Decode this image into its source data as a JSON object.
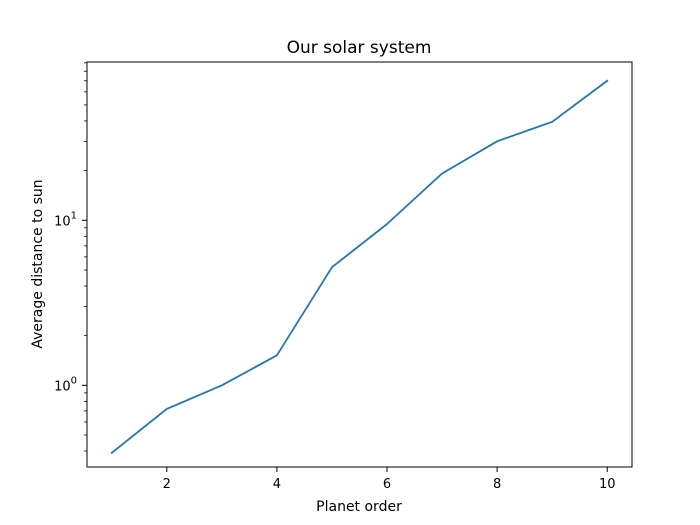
{
  "chart_data": {
    "type": "line",
    "title": "Our solar system",
    "xlabel": "Planet order",
    "ylabel": "Average distance to sun",
    "x_scale": "linear",
    "y_scale": "log",
    "xlim": [
      0.55,
      10.45
    ],
    "ylim": [
      0.32,
      91
    ],
    "x_ticks": [
      2,
      4,
      6,
      8,
      10
    ],
    "x_tick_labels": [
      "2",
      "4",
      "6",
      "8",
      "10"
    ],
    "y_major_ticks": [
      1,
      10
    ],
    "y_tick_labels": [
      {
        "base": "10",
        "exp": "0"
      },
      {
        "base": "10",
        "exp": "1"
      }
    ],
    "grid": false,
    "legend": "none",
    "line_color": "#1f77b4",
    "series": [
      {
        "x": [
          1,
          2,
          3,
          4,
          5,
          6,
          7,
          8,
          9,
          10
        ],
        "values": [
          0.39,
          0.72,
          1.0,
          1.52,
          5.2,
          9.5,
          19.2,
          30.1,
          39.5,
          70
        ]
      }
    ]
  }
}
